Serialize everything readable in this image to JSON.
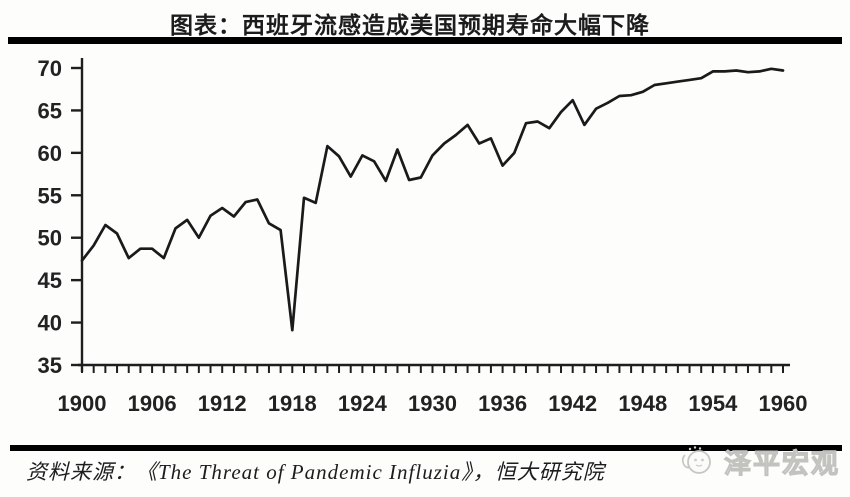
{
  "title": "图表：西班牙流感造成美国预期寿命大幅下降",
  "source": "资料来源：《The Threat of Pandemic Influzia》，恒大研究院",
  "watermark": "泽平宏观",
  "colors": {
    "line": "#1a1a1a",
    "axis": "#1e1e1e",
    "tick_label": "#222222",
    "rule": "#000000",
    "watermark_text": "#c9c9c5",
    "background": "#fdfdfc"
  },
  "chart_data": {
    "type": "line",
    "title": "图表：西班牙流感造成美国预期寿命大幅下降",
    "xlabel": "",
    "ylabel": "",
    "xlim": [
      1900,
      1960
    ],
    "ylim": [
      35,
      70
    ],
    "grid": false,
    "legend": "none",
    "x_ticks_labeled": [
      1900,
      1906,
      1912,
      1918,
      1924,
      1930,
      1936,
      1942,
      1948,
      1954,
      1960
    ],
    "x_minor_tick_step": 1,
    "y_ticks": [
      35,
      40,
      45,
      50,
      55,
      60,
      65,
      70
    ],
    "x": [
      1900,
      1901,
      1902,
      1903,
      1904,
      1905,
      1906,
      1907,
      1908,
      1909,
      1910,
      1911,
      1912,
      1913,
      1914,
      1915,
      1916,
      1917,
      1918,
      1919,
      1920,
      1921,
      1922,
      1923,
      1924,
      1925,
      1926,
      1927,
      1928,
      1929,
      1930,
      1931,
      1932,
      1933,
      1934,
      1935,
      1936,
      1937,
      1938,
      1939,
      1940,
      1941,
      1942,
      1943,
      1944,
      1945,
      1946,
      1947,
      1948,
      1949,
      1950,
      1951,
      1952,
      1953,
      1954,
      1955,
      1956,
      1957,
      1958,
      1959,
      1960
    ],
    "values": [
      47.3,
      49.1,
      51.5,
      50.5,
      47.6,
      48.7,
      48.7,
      47.6,
      51.1,
      52.1,
      50.0,
      52.6,
      53.5,
      52.5,
      54.2,
      54.5,
      51.7,
      50.9,
      39.1,
      54.7,
      54.1,
      60.8,
      59.6,
      57.2,
      59.7,
      59.0,
      56.7,
      60.4,
      56.8,
      57.1,
      59.7,
      61.1,
      62.1,
      63.3,
      61.1,
      61.7,
      58.5,
      60.0,
      63.5,
      63.7,
      62.9,
      64.8,
      66.2,
      63.3,
      65.2,
      65.9,
      66.7,
      66.8,
      67.2,
      68.0,
      68.2,
      68.4,
      68.6,
      68.8,
      69.6,
      69.6,
      69.7,
      69.5,
      69.6,
      69.9,
      69.7
    ]
  }
}
